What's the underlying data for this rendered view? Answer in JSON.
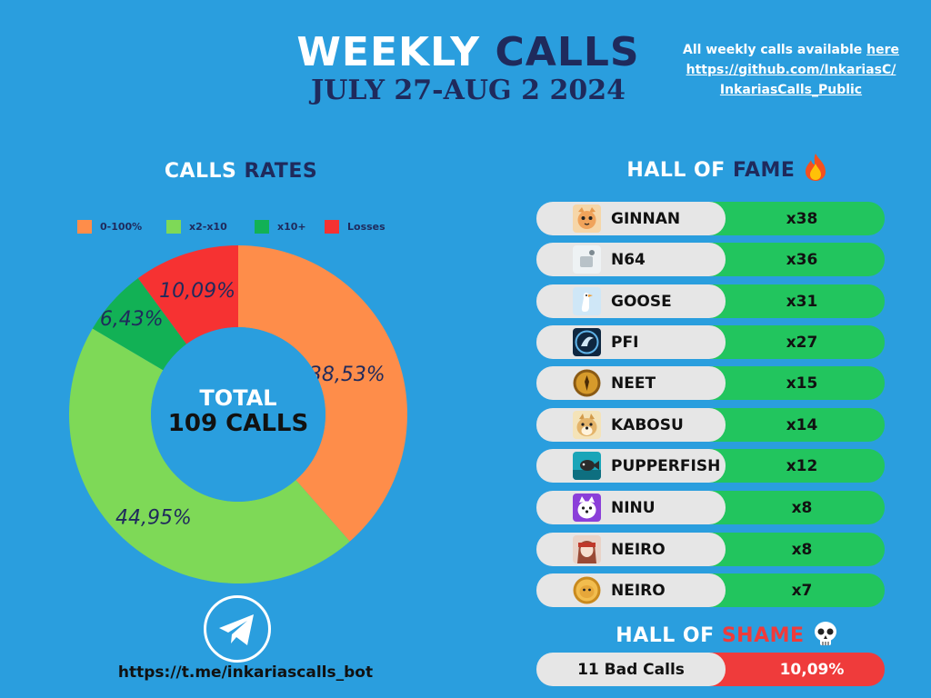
{
  "header": {
    "title_part1": "WEEKLY",
    "title_part2": "CALLS",
    "date_range": "JULY 27-AUG 2 2024",
    "note_prefix": "All weekly calls available",
    "note_link": "here",
    "note_url_line1": "https://github.com/InkariasC/",
    "note_url_line2": "InkariasCalls_Public"
  },
  "rates": {
    "title_part1": "CALLS",
    "title_part2": "RATES",
    "center_line1": "TOTAL",
    "center_line2": "109 CALLS"
  },
  "chart_data": {
    "type": "pie",
    "categories": [
      "0-100%",
      "x2-x10",
      "x10+",
      "Losses"
    ],
    "values": [
      38.53,
      44.95,
      6.43,
      10.09
    ],
    "labels": [
      "38,53%",
      "44,95%",
      "6,43%",
      "10,09%"
    ],
    "colors": [
      "#fe8d4a",
      "#7ed957",
      "#12b155",
      "#f63232"
    ],
    "legend_position": "top"
  },
  "hall_of_fame": {
    "title_part1": "HALL OF",
    "title_part2": "FAME",
    "title_icon": "fire-icon",
    "entries": [
      {
        "name": "GINNAN",
        "mult": "x38",
        "icon": "cat-icon"
      },
      {
        "name": "N64",
        "mult": "x36",
        "icon": "n64-icon"
      },
      {
        "name": "GOOSE",
        "mult": "x31",
        "icon": "goose-icon"
      },
      {
        "name": "PFI",
        "mult": "x27",
        "icon": "pfi-icon"
      },
      {
        "name": "NEET",
        "mult": "x15",
        "icon": "neet-coin-icon"
      },
      {
        "name": "KABOSU",
        "mult": "x14",
        "icon": "kabosu-doge-icon"
      },
      {
        "name": "PUPPERFISH",
        "mult": "x12",
        "icon": "pupperfish-icon"
      },
      {
        "name": "NINU",
        "mult": "x8",
        "icon": "ninu-dog-icon"
      },
      {
        "name": "NEIRO",
        "mult": "x8",
        "icon": "neiro-anime-icon"
      },
      {
        "name": "NEIRO",
        "mult": "x7",
        "icon": "neiro-coin-icon"
      }
    ]
  },
  "hall_of_shame": {
    "title_part1": "HALL OF",
    "title_part2": "SHAME",
    "title_icon": "skull-icon",
    "bad_calls": "11 Bad Calls",
    "percent": "10,09%"
  },
  "footer": {
    "telegram_icon": "telegram-icon",
    "bot_link": "https://t.me/inkariascalls_bot"
  },
  "colors": {
    "background": "#2a9ede",
    "navy": "#1f2a5c",
    "green_bar": "#22c55e",
    "red_bar": "#ef3b3b",
    "shame_red": "#ef3b3b"
  }
}
